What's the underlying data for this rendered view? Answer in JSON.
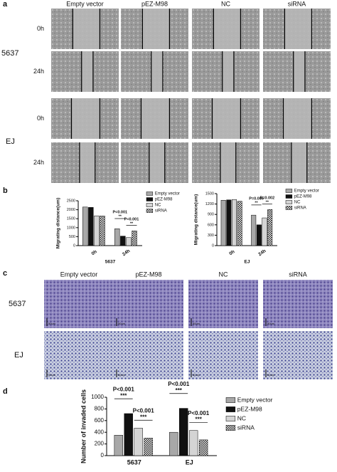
{
  "panel_labels": [
    "a",
    "b",
    "c",
    "d"
  ],
  "migration": {
    "columns": [
      "Empty vector",
      "pEZ-M98",
      "NC",
      "siRNA"
    ],
    "row_groups": [
      {
        "label": "5637",
        "rows": [
          "0h",
          "24h"
        ]
      },
      {
        "label": "EJ",
        "rows": [
          "0h",
          "24h"
        ]
      }
    ]
  },
  "invasion": {
    "columns": [
      "Empty vector",
      "pEZ-M98",
      "NC",
      "siRNA"
    ],
    "rows": [
      "5637",
      "EJ"
    ],
    "scale_bar": "50um"
  },
  "chart_data": [
    {
      "type": "bar",
      "ylabel": "Migrating distance(um)",
      "xlabel": "5637",
      "categories": [
        "0h",
        "24h"
      ],
      "series": [
        {
          "name": "Empty vector",
          "color": "#a8a8a8",
          "values": [
            2150,
            940
          ]
        },
        {
          "name": "pEZ-M98",
          "color": "#111111",
          "values": [
            2130,
            530
          ]
        },
        {
          "name": "NC",
          "color": "#d4d4d4",
          "values": [
            1660,
            450
          ]
        },
        {
          "name": "siRNA",
          "color": "#ffffff",
          "pattern": "checker",
          "values": [
            1650,
            820
          ]
        }
      ],
      "ylim": [
        0,
        2500
      ],
      "yticks": [
        0,
        500,
        1000,
        1500,
        2000,
        2500
      ],
      "annotations": [
        "P<0.001",
        "**",
        "P<0.001",
        "**"
      ]
    },
    {
      "type": "bar",
      "ylabel": "Migrating distance(um)",
      "xlabel": "EJ",
      "categories": [
        "0h",
        "24h"
      ],
      "series": [
        {
          "name": "Empty vector",
          "color": "#a8a8a8",
          "values": [
            1310,
            880
          ]
        },
        {
          "name": "pEZ-M98",
          "color": "#111111",
          "values": [
            1320,
            600
          ]
        },
        {
          "name": "NC",
          "color": "#d4d4d4",
          "values": [
            1330,
            800
          ]
        },
        {
          "name": "siRNA",
          "color": "#ffffff",
          "pattern": "checker",
          "values": [
            1280,
            1040
          ]
        }
      ],
      "ylim": [
        0,
        1500
      ],
      "yticks": [
        0,
        300,
        600,
        900,
        1200,
        1500
      ],
      "annotations": [
        "P=0.006",
        "**",
        "P=0.002",
        "**"
      ]
    },
    {
      "type": "bar",
      "ylabel": "Number of invaded cells",
      "categories": [
        "5637",
        "EJ"
      ],
      "series": [
        {
          "name": "Empty vector",
          "color": "#a8a8a8",
          "values": [
            350,
            400
          ]
        },
        {
          "name": "pEZ-M98",
          "color": "#111111",
          "values": [
            720,
            810
          ]
        },
        {
          "name": "NC",
          "color": "#d4d4d4",
          "values": [
            470,
            430
          ]
        },
        {
          "name": "siRNA",
          "color": "#ffffff",
          "pattern": "checker",
          "values": [
            300,
            270
          ]
        }
      ],
      "ylim": [
        0,
        1000
      ],
      "yticks": [
        0,
        200,
        400,
        600,
        800,
        1000
      ],
      "annotations": [
        "P<0.001",
        "***",
        "P<0.001",
        "***",
        "P<0.001",
        "***",
        "P<0.001",
        "***"
      ]
    }
  ]
}
